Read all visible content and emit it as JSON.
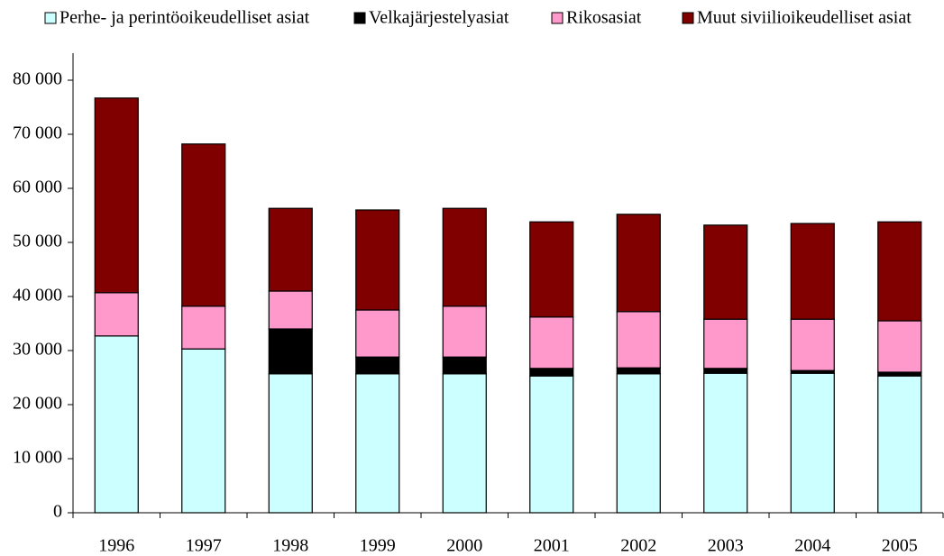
{
  "chart_data": {
    "type": "stacked_bar",
    "categories": [
      "1996",
      "1997",
      "1998",
      "1999",
      "2000",
      "2001",
      "2002",
      "2003",
      "2004",
      "2005"
    ],
    "series": [
      {
        "name": "Perhe- ja perintöoikeudelliset asiat",
        "color": "#ccffff",
        "values": [
          32700,
          30300,
          25700,
          25700,
          25700,
          25300,
          25700,
          25800,
          25800,
          25300
        ]
      },
      {
        "name": "Velkajärjestelyasiat",
        "color": "#000000",
        "values": [
          0,
          0,
          8300,
          3100,
          3100,
          1400,
          1100,
          900,
          500,
          700
        ]
      },
      {
        "name": "Rikosasiat",
        "color": "#ff99cc",
        "values": [
          8000,
          7900,
          7000,
          8700,
          9400,
          9500,
          10400,
          9100,
          9500,
          9500
        ]
      },
      {
        "name": "Muut siviilioikeudelliset asiat",
        "color": "#800000",
        "values": [
          36000,
          30000,
          15300,
          18500,
          18100,
          17600,
          18000,
          17400,
          17700,
          18300
        ]
      }
    ],
    "ylim": [
      0,
      80000
    ],
    "yticks": [
      0,
      {
        "value": 10000,
        "label": "10 000"
      },
      {
        "value": 20000,
        "label": "20 000"
      },
      {
        "value": 30000,
        "label": "30 000"
      },
      {
        "value": 40000,
        "label": "40 000"
      },
      {
        "value": 50000,
        "label": "50 000"
      },
      {
        "value": 60000,
        "label": "60 000"
      },
      {
        "value": 70000,
        "label": "70 000"
      },
      {
        "value": 80000,
        "label": "80 000"
      }
    ],
    "legend": "top"
  }
}
